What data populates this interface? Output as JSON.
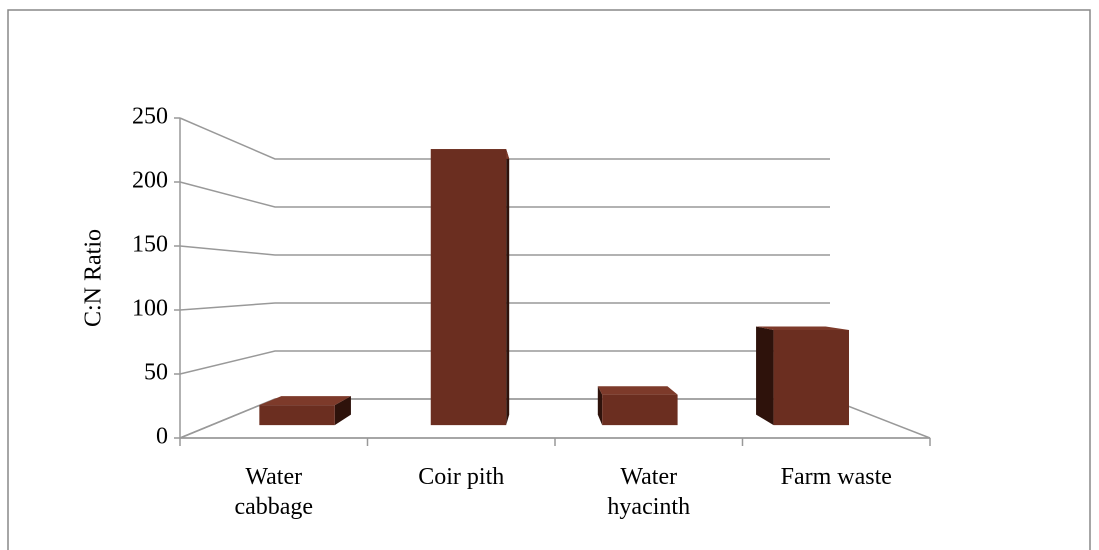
{
  "chart_data": {
    "type": "bar",
    "y_label": "C:N Ratio",
    "categories": [
      "Water cabbage",
      "Coir pith",
      "Water hyacinth",
      "Farm waste"
    ],
    "values": [
      17,
      235,
      26,
      81
    ],
    "color": "#6b2e20",
    "ylim": [
      0,
      250
    ],
    "yticks": [
      0,
      50,
      100,
      150,
      200,
      250
    ],
    "grid": true
  }
}
